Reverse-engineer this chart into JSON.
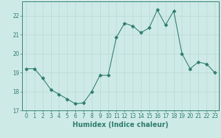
{
  "x": [
    0,
    1,
    2,
    3,
    4,
    5,
    6,
    7,
    8,
    9,
    10,
    11,
    12,
    13,
    14,
    15,
    16,
    17,
    18,
    19,
    20,
    21,
    22,
    23
  ],
  "y": [
    19.2,
    19.2,
    18.7,
    18.1,
    17.85,
    17.6,
    17.35,
    17.4,
    18.0,
    18.85,
    18.85,
    20.85,
    21.6,
    21.45,
    21.1,
    21.35,
    22.3,
    21.5,
    22.25,
    20.0,
    19.2,
    19.55,
    19.45,
    19.0
  ],
  "xlabel": "Humidex (Indice chaleur)",
  "ylim": [
    17.0,
    22.75
  ],
  "xlim": [
    -0.5,
    23.5
  ],
  "yticks": [
    17,
    18,
    19,
    20,
    21,
    22
  ],
  "xticks": [
    0,
    1,
    2,
    3,
    4,
    5,
    6,
    7,
    8,
    9,
    10,
    11,
    12,
    13,
    14,
    15,
    16,
    17,
    18,
    19,
    20,
    21,
    22,
    23
  ],
  "line_color": "#2e7d6e",
  "marker": "D",
  "marker_size": 2.5,
  "bg_color": "#ceeae6",
  "grid_color": "#b8d8d4",
  "tick_fontsize": 5.5,
  "label_fontsize": 7
}
